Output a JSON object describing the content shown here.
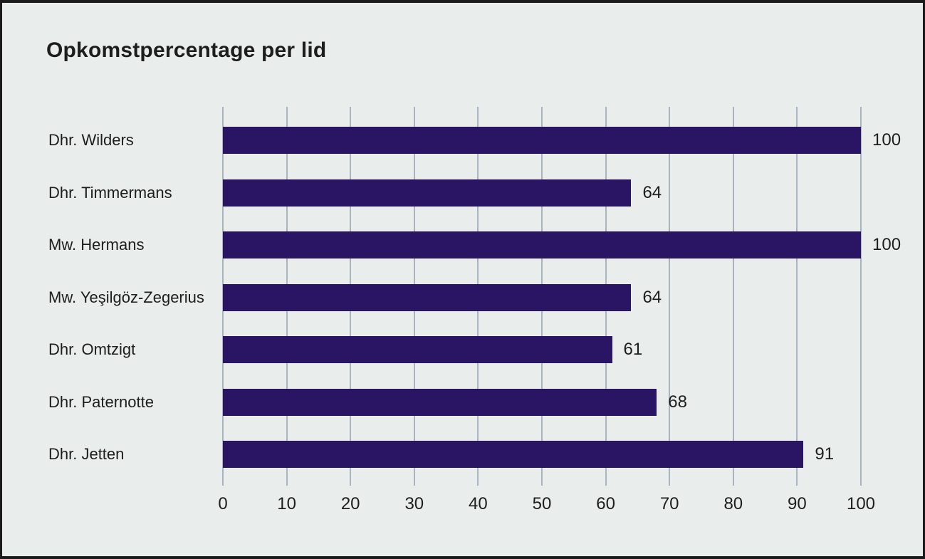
{
  "panel": {
    "background_color": "#e9edec",
    "border_color": "#1b1b1b",
    "text_color": "#1d1d1d"
  },
  "chart_data": {
    "type": "bar",
    "orientation": "horizontal",
    "title": "Opkomstpercentage per lid",
    "categories": [
      "Dhr. Wilders",
      "Dhr. Timmermans",
      "Mw. Hermans",
      "Mw. Yeşilgöz-Zegerius",
      "Dhr. Omtzigt",
      "Dhr. Paternotte",
      "Dhr. Jetten"
    ],
    "values": [
      100,
      64,
      100,
      64,
      61,
      68,
      91
    ],
    "x_ticks": [
      0,
      10,
      20,
      30,
      40,
      50,
      60,
      70,
      80,
      90,
      100
    ],
    "xlim": [
      0,
      100
    ],
    "xlabel": "",
    "ylabel": "",
    "grid": true,
    "legend_position": "none",
    "bar_color": "#2a1464",
    "grid_color": "#a9b4c0"
  }
}
